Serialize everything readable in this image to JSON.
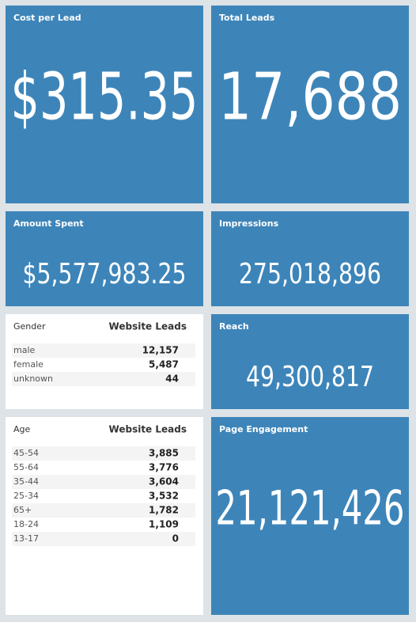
{
  "tiles": [
    {
      "title": "Cost per Lead",
      "value": "$315.35"
    },
    {
      "title": "Total Leads",
      "value": "17,688"
    },
    {
      "title": "Amount Spent",
      "value": "$5,577,983.25"
    },
    {
      "title": "Impressions",
      "value": "275,018,896"
    },
    {
      "title": "Reach",
      "value": "49,300,817"
    },
    {
      "title": "Page Engagement",
      "value": "21,121,426"
    }
  ],
  "tables": [
    {
      "header": [
        "Gender",
        "Website Leads"
      ],
      "rows": [
        [
          "male",
          "12,157"
        ],
        [
          "female",
          "5,487"
        ],
        [
          "unknown",
          "44"
        ]
      ]
    },
    {
      "header": [
        "Age",
        "Website Leads"
      ],
      "rows": [
        [
          "45-54",
          "3,885"
        ],
        [
          "55-64",
          "3,776"
        ],
        [
          "35-44",
          "3,604"
        ],
        [
          "25-34",
          "3,532"
        ],
        [
          "65+",
          "1,782"
        ],
        [
          "18-24",
          "1,109"
        ],
        [
          "13-17",
          "0"
        ]
      ]
    }
  ]
}
